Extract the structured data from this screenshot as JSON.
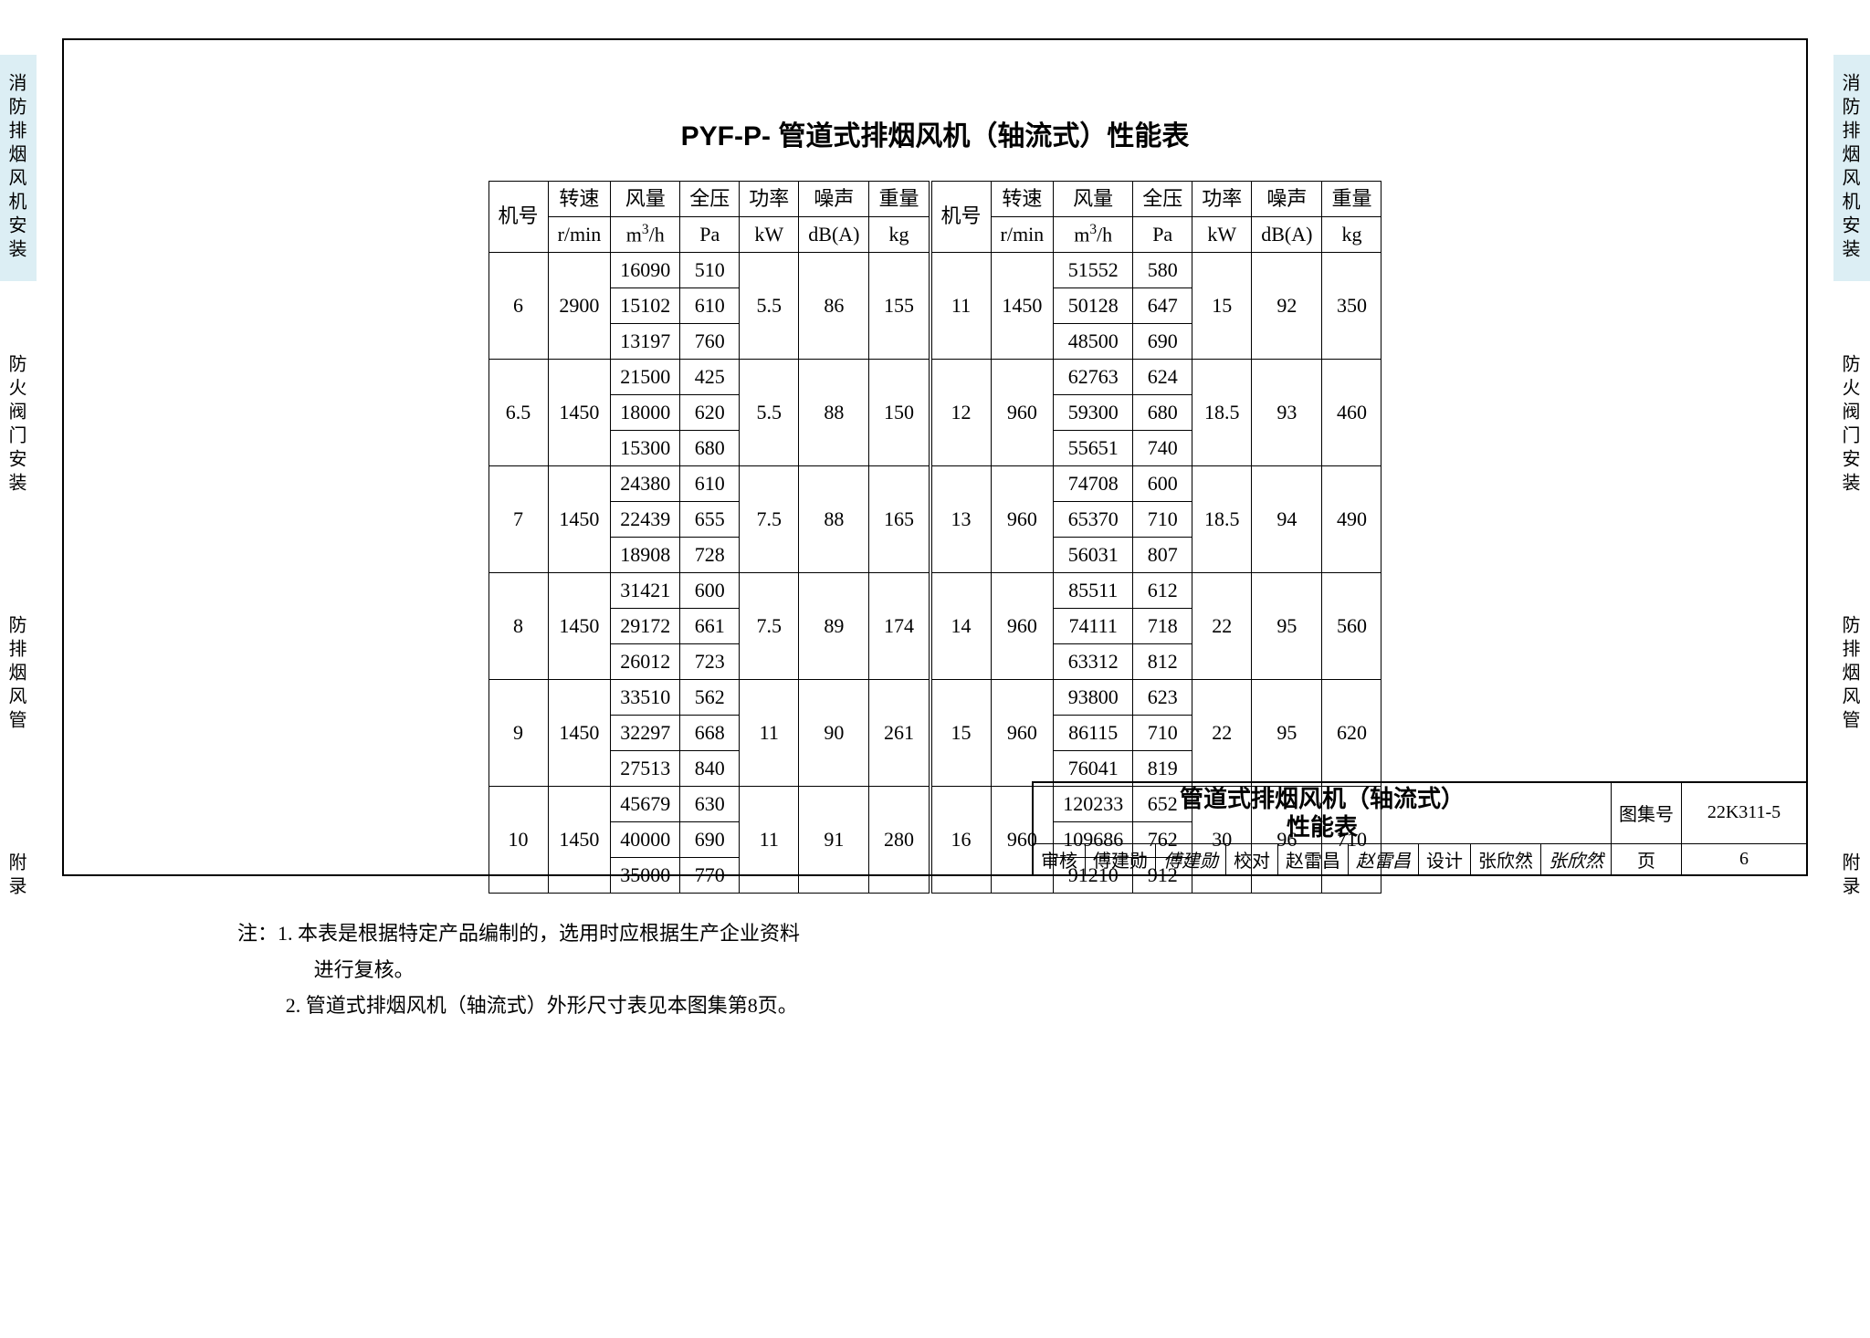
{
  "side_tabs": {
    "items": [
      {
        "label": "消防排烟风机安装",
        "active": true
      },
      {
        "label": "防火阀门安装",
        "active": false
      },
      {
        "label": "防排烟风管",
        "active": false
      },
      {
        "label": "附录",
        "active": false
      }
    ]
  },
  "title": "PYF-P- 管道式排烟风机（轴流式）性能表",
  "headers": {
    "h1": "机号",
    "h2a": "转速",
    "h2b": "r/min",
    "h3a": "风量",
    "h3b": "m³/h",
    "h4a": "全压",
    "h4b": "Pa",
    "h5a": "功率",
    "h5b": "kW",
    "h6a": "噪声",
    "h6b": "dB(A)",
    "h7a": "重量",
    "h7b": "kg"
  },
  "left_block": [
    {
      "no": "6",
      "speed": "2900",
      "flow": [
        "16090",
        "15102",
        "13197"
      ],
      "press": [
        "510",
        "610",
        "760"
      ],
      "pow": "5.5",
      "noise": "86",
      "wt": "155"
    },
    {
      "no": "6.5",
      "speed": "1450",
      "flow": [
        "21500",
        "18000",
        "15300"
      ],
      "press": [
        "425",
        "620",
        "680"
      ],
      "pow": "5.5",
      "noise": "88",
      "wt": "150"
    },
    {
      "no": "7",
      "speed": "1450",
      "flow": [
        "24380",
        "22439",
        "18908"
      ],
      "press": [
        "610",
        "655",
        "728"
      ],
      "pow": "7.5",
      "noise": "88",
      "wt": "165"
    },
    {
      "no": "8",
      "speed": "1450",
      "flow": [
        "31421",
        "29172",
        "26012"
      ],
      "press": [
        "600",
        "661",
        "723"
      ],
      "pow": "7.5",
      "noise": "89",
      "wt": "174"
    },
    {
      "no": "9",
      "speed": "1450",
      "flow": [
        "33510",
        "32297",
        "27513"
      ],
      "press": [
        "562",
        "668",
        "840"
      ],
      "pow": "11",
      "noise": "90",
      "wt": "261"
    },
    {
      "no": "10",
      "speed": "1450",
      "flow": [
        "45679",
        "40000",
        "35000"
      ],
      "press": [
        "630",
        "690",
        "770"
      ],
      "pow": "11",
      "noise": "91",
      "wt": "280"
    }
  ],
  "right_block": [
    {
      "no": "11",
      "speed": "1450",
      "flow": [
        "51552",
        "50128",
        "48500"
      ],
      "press": [
        "580",
        "647",
        "690"
      ],
      "pow": "15",
      "noise": "92",
      "wt": "350"
    },
    {
      "no": "12",
      "speed": "960",
      "flow": [
        "62763",
        "59300",
        "55651"
      ],
      "press": [
        "624",
        "680",
        "740"
      ],
      "pow": "18.5",
      "noise": "93",
      "wt": "460"
    },
    {
      "no": "13",
      "speed": "960",
      "flow": [
        "74708",
        "65370",
        "56031"
      ],
      "press": [
        "600",
        "710",
        "807"
      ],
      "pow": "18.5",
      "noise": "94",
      "wt": "490"
    },
    {
      "no": "14",
      "speed": "960",
      "flow": [
        "85511",
        "74111",
        "63312"
      ],
      "press": [
        "612",
        "718",
        "812"
      ],
      "pow": "22",
      "noise": "95",
      "wt": "560"
    },
    {
      "no": "15",
      "speed": "960",
      "flow": [
        "93800",
        "86115",
        "76041"
      ],
      "press": [
        "623",
        "710",
        "819"
      ],
      "pow": "22",
      "noise": "95",
      "wt": "620"
    },
    {
      "no": "16",
      "speed": "960",
      "flow": [
        "120233",
        "109686",
        "91210"
      ],
      "press": [
        "652",
        "762",
        "912"
      ],
      "pow": "30",
      "noise": "96",
      "wt": "710"
    }
  ],
  "notes": {
    "prefix": "注：",
    "n1a": "1. 本表是根据特定产品编制的，选用时应根据生产企业资料",
    "n1b": "进行复核。",
    "n2": "2. 管道式排烟风机（轴流式）外形尺寸表见本图集第8页。"
  },
  "title_block": {
    "main1": "管道式排烟风机（轴流式）",
    "main2": "性能表",
    "atlas_label": "图集号",
    "atlas_no": "22K311-5",
    "page_label": "页",
    "page_no": "6",
    "review_l": "审核",
    "review_n": "傅建勋",
    "review_s": "傅建勋",
    "check_l": "校对",
    "check_n": "赵雷昌",
    "check_s": "赵雷昌",
    "design_l": "设计",
    "design_n": "张欣然",
    "design_s": "张欣然"
  }
}
